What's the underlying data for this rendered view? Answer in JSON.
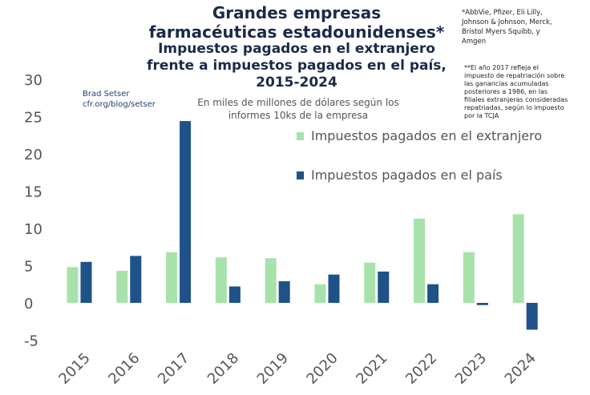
{
  "title": "Grandes empresas\nfarmacéuticas estadounidenses*",
  "subtitle": "Impuestos pagados en el extranjero\nfrente a impuestos pagados en el país,\n2015-2024",
  "units_note": "En miles de millones de dólares según los\ninformes 10ks de la empresa",
  "credit": "Brad Setser\ncfr.org/blog/setser",
  "footnote_companies": "*AbbVie, Pfizer, Eli Lilly, Johnson & Johnson, Merck, Bristol Myers Squibb, y Amgen",
  "footnote_2017": "**El año 2017 refleja el impuesto de repatriación sobre las ganancias acumuladas posteriores a 1986, en las filiales extranjeras consideradas repatriadas, según lo impuesto por la TCJA",
  "colors": {
    "foreign": "#a8e2ab",
    "domestic": "#1e5288",
    "axis_text": "#555555"
  },
  "chart_data": {
    "type": "bar",
    "categories": [
      "2015",
      "2016",
      "2017",
      "2018",
      "2019",
      "2020",
      "2021",
      "2022",
      "2023",
      "2024"
    ],
    "series": [
      {
        "name": "Impuestos pagados en el extranjero",
        "values": [
          4.8,
          4.3,
          6.8,
          6.1,
          6.0,
          2.5,
          5.4,
          11.3,
          6.8,
          11.9
        ]
      },
      {
        "name": "Impuestos pagados en el país",
        "values": [
          5.5,
          6.3,
          24.4,
          2.2,
          2.9,
          3.8,
          4.2,
          2.5,
          -0.3,
          -3.6
        ]
      }
    ],
    "y_ticks": [
      30,
      25,
      20,
      15,
      10,
      5,
      0,
      -5
    ],
    "ylim": [
      -5,
      30
    ],
    "grid": false,
    "legend": "top-right"
  }
}
